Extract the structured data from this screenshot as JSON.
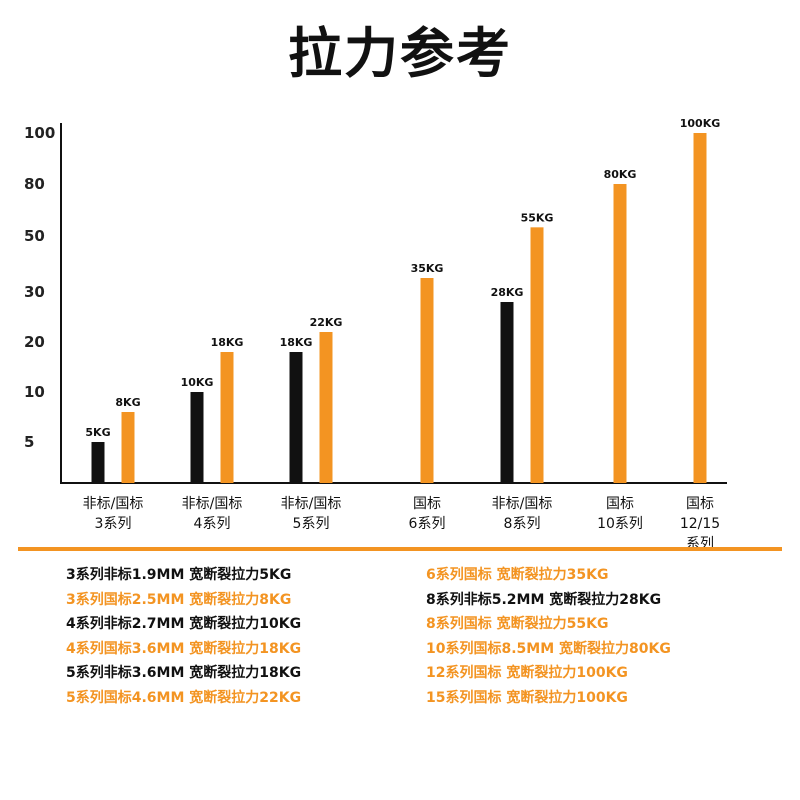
{
  "title": "拉力参考",
  "colors": {
    "black": "#111111",
    "orange": "#f39422"
  },
  "chart_data": {
    "type": "bar",
    "y_ticks": [
      "100",
      "80",
      "50",
      "30",
      "20",
      "10",
      "5"
    ],
    "categories": [
      {
        "lines": [
          "非标/国标",
          "3系列"
        ],
        "bars": [
          {
            "kind": "非标",
            "value": 5,
            "label": "5KG"
          },
          {
            "kind": "国标",
            "value": 8,
            "label": "8KG"
          }
        ]
      },
      {
        "lines": [
          "非标/国标",
          "4系列"
        ],
        "bars": [
          {
            "kind": "非标",
            "value": 10,
            "label": "10KG"
          },
          {
            "kind": "国标",
            "value": 18,
            "label": "18KG"
          }
        ]
      },
      {
        "lines": [
          "非标/国标",
          "5系列"
        ],
        "bars": [
          {
            "kind": "非标",
            "value": 18,
            "label": "18KG"
          },
          {
            "kind": "国标",
            "value": 22,
            "label": "22KG"
          }
        ]
      },
      {
        "lines": [
          "国标",
          "6系列"
        ],
        "bars": [
          {
            "kind": "国标",
            "value": 35,
            "label": "35KG"
          }
        ]
      },
      {
        "lines": [
          "非标/国标",
          "8系列"
        ],
        "bars": [
          {
            "kind": "非标",
            "value": 28,
            "label": "28KG"
          },
          {
            "kind": "国标",
            "value": 55,
            "label": "55KG"
          }
        ]
      },
      {
        "lines": [
          "国标",
          "10系列"
        ],
        "bars": [
          {
            "kind": "国标",
            "value": 80,
            "label": "80KG"
          }
        ]
      },
      {
        "lines": [
          "国标",
          "12/15",
          "系列"
        ],
        "bars": [
          {
            "kind": "国标",
            "value": 100,
            "label": "100KG"
          }
        ]
      }
    ]
  },
  "specs_left": [
    {
      "text": "3系列非标1.9MM 宽断裂拉力5KG",
      "color": "black"
    },
    {
      "text": "3系列国标2.5MM 宽断裂拉力8KG",
      "color": "orange"
    },
    {
      "text": "4系列非标2.7MM 宽断裂拉力10KG",
      "color": "black"
    },
    {
      "text": "4系列国标3.6MM 宽断裂拉力18KG",
      "color": "orange"
    },
    {
      "text": "5系列非标3.6MM 宽断裂拉力18KG",
      "color": "black"
    },
    {
      "text": "5系列国标4.6MM 宽断裂拉力22KG",
      "color": "orange"
    }
  ],
  "specs_right": [
    {
      "text": "6系列国标 宽断裂拉力35KG",
      "color": "orange"
    },
    {
      "text": "8系列非标5.2MM 宽断裂拉力28KG",
      "color": "black"
    },
    {
      "text": "8系列国标 宽断裂拉力55KG",
      "color": "orange"
    },
    {
      "text": "10系列国标8.5MM 宽断裂拉力80KG",
      "color": "orange"
    },
    {
      "text": "12系列国标 宽断裂拉力100KG",
      "color": "orange"
    },
    {
      "text": "15系列国标 宽断裂拉力100KG",
      "color": "orange"
    }
  ]
}
